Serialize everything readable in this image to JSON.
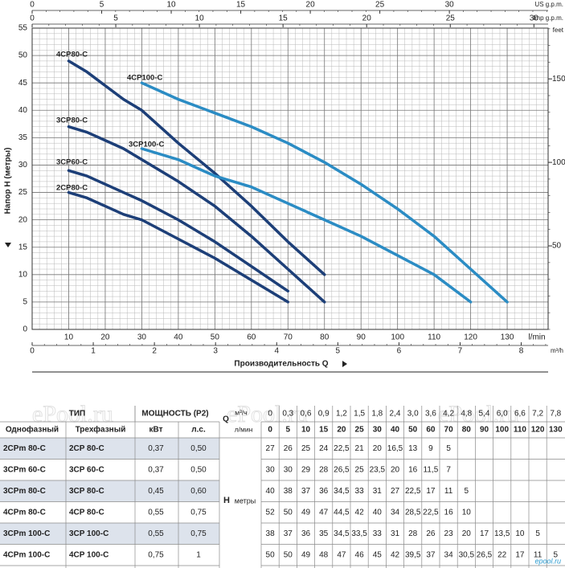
{
  "chart_data": {
    "type": "line",
    "y_label": "Напор H (метры)",
    "x_label": "Производительность Q",
    "x_unit": "l/min",
    "xlim": [
      0,
      141.2
    ],
    "xticks": [
      10,
      20,
      30,
      40,
      50,
      60,
      70,
      80,
      90,
      100,
      110,
      120,
      130
    ],
    "ylim": [
      0,
      55
    ],
    "yticks": [
      0,
      5,
      10,
      15,
      20,
      25,
      30,
      35,
      40,
      45,
      50,
      55
    ],
    "grid": true,
    "us_gpm": {
      "label": "US g.p.m.",
      "lim": [
        0,
        37.1
      ],
      "ticks": [
        0,
        5,
        10,
        15,
        20,
        25,
        30
      ]
    },
    "imp_gpm": {
      "label": "Imp g.p.m.",
      "lim": [
        0,
        30.85
      ],
      "ticks": [
        0,
        5,
        10,
        15,
        20,
        25,
        30
      ]
    },
    "m3h_axis": {
      "label": "m³/h",
      "lim": [
        0,
        8.44
      ],
      "ticks": [
        0,
        1,
        2,
        3,
        4,
        5,
        6,
        7,
        8
      ]
    },
    "feet_axis": {
      "label": "feet",
      "lim": [
        0,
        180.4
      ],
      "ticks": [
        50,
        100,
        150
      ]
    },
    "series": [
      {
        "name": "4CP80-C",
        "color": "#1d3f78",
        "x": [
          10,
          15,
          20,
          25,
          30,
          40,
          50,
          60,
          70,
          80
        ],
        "values": [
          49,
          47,
          44.5,
          42,
          40,
          34,
          28.5,
          22.5,
          16,
          10
        ]
      },
      {
        "name": "4CP100-C",
        "color": "#2b8cc4",
        "x": [
          30,
          40,
          50,
          60,
          70,
          80,
          90,
          100,
          110,
          120,
          130
        ],
        "values": [
          45,
          42,
          39.5,
          37,
          34,
          30.5,
          26.5,
          22,
          17,
          11,
          5
        ]
      },
      {
        "name": "3CP80-C",
        "color": "#1d3f78",
        "x": [
          10,
          15,
          20,
          25,
          30,
          40,
          50,
          60,
          70,
          80
        ],
        "values": [
          37,
          36,
          34.5,
          33,
          31,
          27,
          22.5,
          17,
          11,
          5
        ]
      },
      {
        "name": "3CP100-C",
        "color": "#2b8cc4",
        "x": [
          30,
          40,
          50,
          60,
          70,
          80,
          90,
          100,
          110,
          120
        ],
        "values": [
          33,
          31,
          28,
          26,
          23,
          20,
          17,
          13.5,
          10,
          5
        ]
      },
      {
        "name": "3CP60-C",
        "color": "#1d3f78",
        "x": [
          10,
          15,
          20,
          25,
          30,
          40,
          50,
          60,
          70
        ],
        "values": [
          29,
          28,
          26.5,
          25,
          23.5,
          20,
          16,
          11.5,
          7
        ]
      },
      {
        "name": "2CP80-C",
        "color": "#1d3f78",
        "x": [
          10,
          15,
          20,
          25,
          30,
          40,
          50,
          60,
          70
        ],
        "values": [
          25,
          24,
          22.5,
          21,
          20,
          16.5,
          13,
          9,
          5
        ]
      }
    ]
  },
  "table": {
    "type_header": "ТИП",
    "power_header": "МОЩНОСТЬ (P2)",
    "q": "Q",
    "m3h": "м³/ч",
    "lmin": "л/мин",
    "columns": [
      "Однофазный",
      "Трехфазный",
      "кВт",
      "л.с."
    ],
    "h": "H",
    "h_unit": "метры",
    "m3h_values": [
      "0",
      "0,3",
      "0,6",
      "0,9",
      "1,2",
      "1,5",
      "1,8",
      "2,4",
      "3,0",
      "3,6",
      "4,2",
      "4,8",
      "5,4",
      "6,0",
      "6,6",
      "7,2",
      "7,8"
    ],
    "lmin_values": [
      0,
      5,
      10,
      15,
      20,
      25,
      30,
      40,
      50,
      60,
      70,
      80,
      90,
      100,
      110,
      120,
      130
    ],
    "rows": [
      [
        "2CPm 80-C",
        "2CP 80-C",
        "0,37",
        "0,50",
        27,
        26,
        25,
        24,
        "22,5",
        21,
        20,
        "16,5",
        13,
        9,
        5
      ],
      [
        "3CPm 60-C",
        "3CP 60-C",
        "0,37",
        "0,50",
        30,
        30,
        29,
        28,
        "26,5",
        25,
        "23,5",
        20,
        16,
        "11,5",
        7
      ],
      [
        "3CPm 80-C",
        "3CP 80-C",
        "0,45",
        "0,60",
        40,
        38,
        37,
        36,
        "34,5",
        33,
        31,
        27,
        "22,5",
        17,
        11,
        5
      ],
      [
        "4CPm 80-C",
        "4CP 80-C",
        "0,55",
        "0,75",
        52,
        50,
        49,
        47,
        "44,5",
        42,
        40,
        34,
        "28,5",
        "22,5",
        16,
        10
      ],
      [
        "3CPm 100-C",
        "3CP 100-C",
        "0,55",
        "0,75",
        38,
        37,
        36,
        35,
        "34,5",
        "33,5",
        33,
        31,
        28,
        26,
        23,
        20,
        17,
        "13,5",
        10,
        5
      ],
      [
        "4CPm 100-C",
        "4CP 100-C",
        "0,75",
        "1",
        50,
        50,
        49,
        48,
        47,
        46,
        45,
        42,
        "39,5",
        37,
        34,
        "30,5",
        "26,5",
        22,
        17,
        11,
        5
      ]
    ]
  },
  "watermark": "ePool.ru",
  "logo": "epool.ru"
}
